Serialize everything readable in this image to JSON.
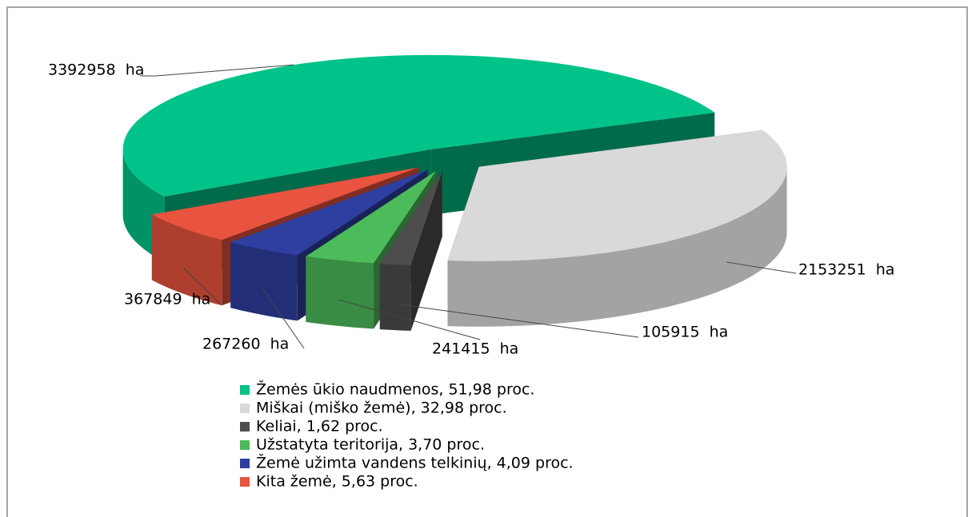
{
  "chart_data": {
    "type": "pie",
    "categories": [
      "Žemės ūkio naudmenos, 51,98 proc.",
      "Miškai (miško žemė), 32,98 proc.",
      "Keliai, 1,62 proc.",
      "Užstatyta teritorija, 3,70 proc.",
      "Žemė užimta vandens telkinių, 4,09 proc.",
      "Kita žemė, 5,63 proc."
    ],
    "values": [
      3392958,
      2153251,
      105915,
      241415,
      267260,
      367849
    ],
    "value_labels": [
      "3392958  ha",
      "2153251  ha",
      "105915  ha",
      "241415  ha",
      "267260  ha",
      "367849  ha"
    ],
    "colors": [
      "#00c389",
      "#d9d9d9",
      "#4d4d4d",
      "#4cbb5a",
      "#2e3fa0",
      "#e8543f"
    ],
    "legend": "bottom"
  }
}
